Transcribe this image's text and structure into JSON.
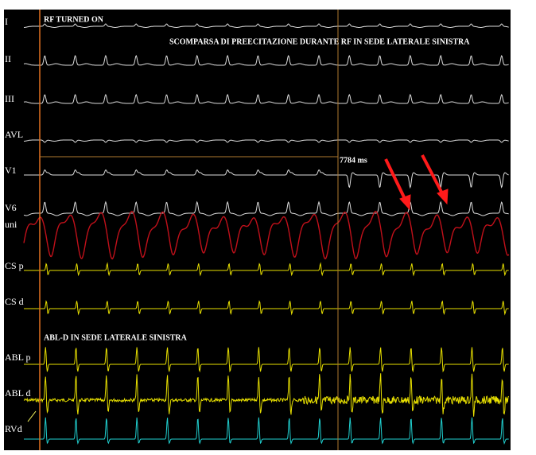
{
  "leads": [
    "I",
    "II",
    "III",
    "AVL",
    "V1",
    "V6",
    "uni",
    "CS p",
    "CS d",
    "ABL p",
    "ABL d",
    "RVd"
  ],
  "annotations": {
    "rf_on": "RF TURNED ON",
    "note": "SCOMPARSA DI PREECITAZIONE DURANTE RF IN SEDE LATERALE SINISTRA",
    "interval": "7784 ms",
    "abl": "ABL-D IN SEDE LATERALE SINISTRA"
  }
}
